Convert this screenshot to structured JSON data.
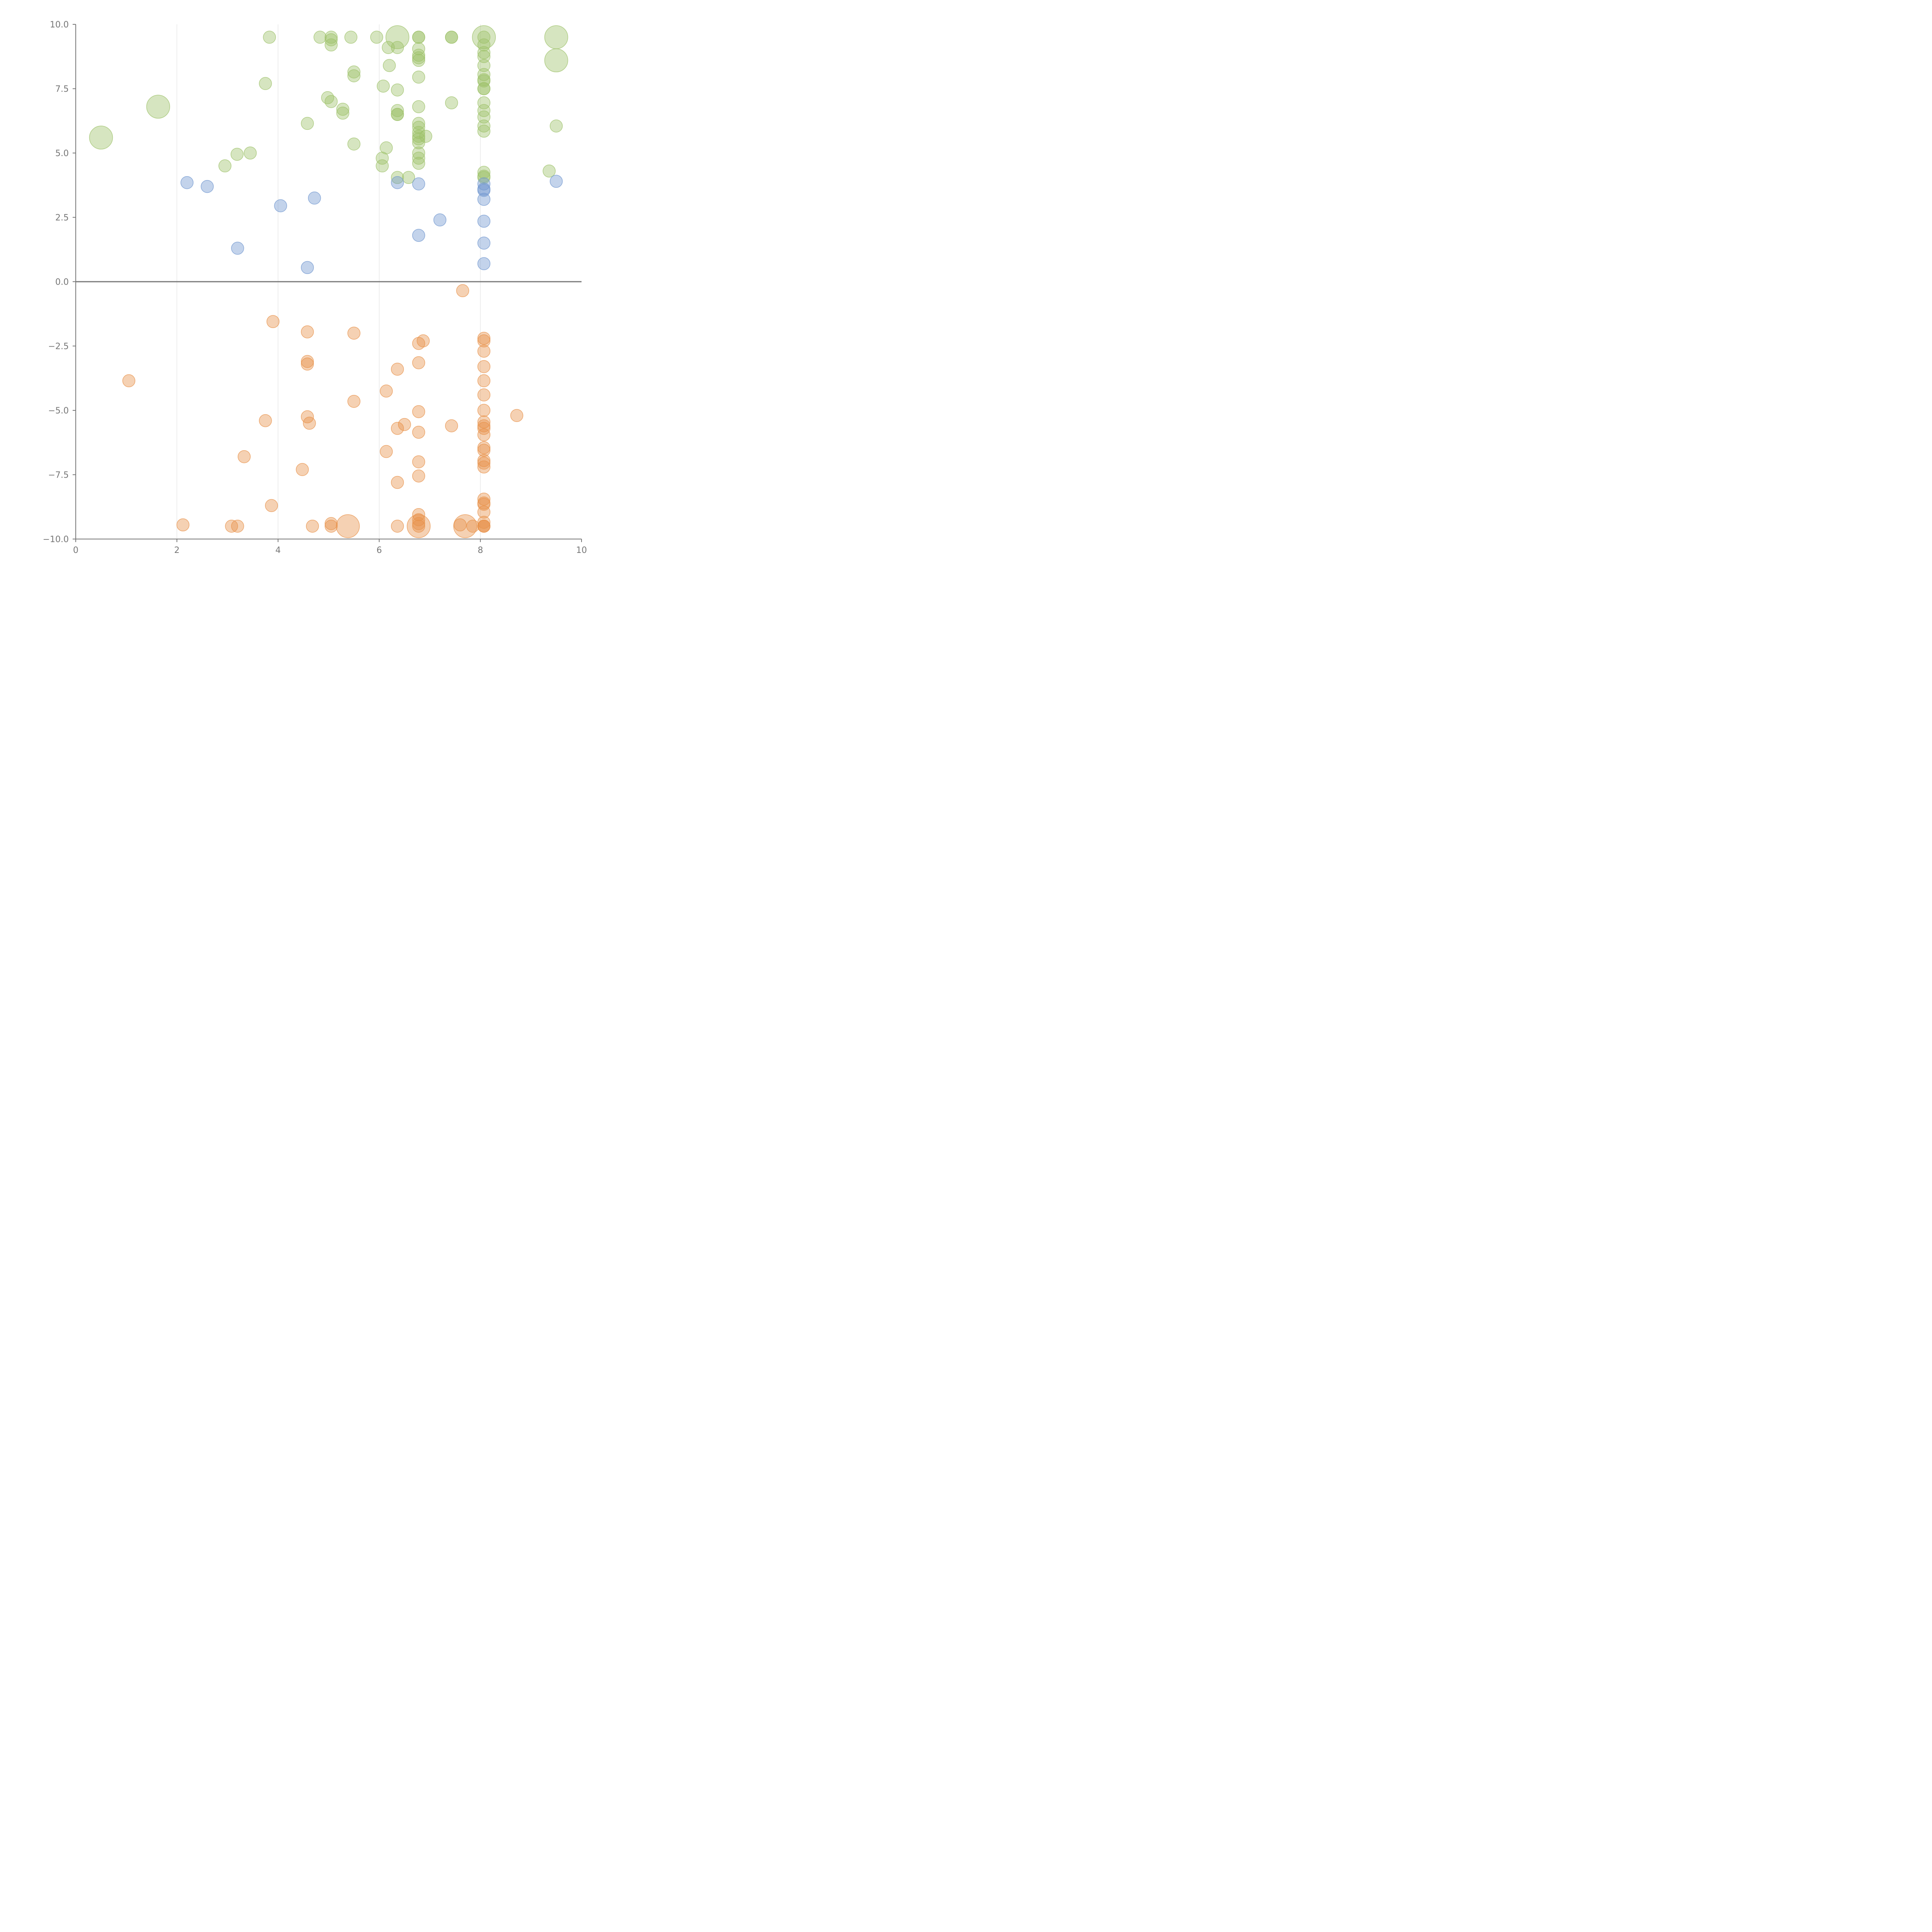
{
  "chart_data": {
    "type": "scatter",
    "title": "",
    "xlabel": "",
    "ylabel": "",
    "xlim": [
      0,
      10
    ],
    "ylim": [
      -10,
      10
    ],
    "x_ticks": [
      "0",
      "2",
      "4",
      "6",
      "8",
      "10"
    ],
    "y_ticks": [
      "−10.0",
      "−7.5",
      "−5.0",
      "−2.5",
      "0.0",
      "2.5",
      "5.0",
      "7.5",
      "10.0"
    ],
    "grid": {
      "vertical": true,
      "horizontal": false
    },
    "legend": "none",
    "bubble_sizes": [
      "small",
      "large"
    ],
    "series": [
      {
        "color": "#9dc26a",
        "points": [
          [
            3.83,
            9.5,
            "small"
          ],
          [
            4.83,
            9.5,
            "small"
          ],
          [
            5.05,
            9.5,
            "small"
          ],
          [
            5.05,
            9.4,
            "small"
          ],
          [
            5.05,
            9.2,
            "small"
          ],
          [
            5.44,
            9.5,
            "small"
          ],
          [
            5.95,
            9.5,
            "small"
          ],
          [
            6.36,
            9.5,
            "large"
          ],
          [
            6.18,
            9.1,
            "small"
          ],
          [
            6.36,
            9.1,
            "small"
          ],
          [
            6.78,
            9.5,
            "small"
          ],
          [
            6.78,
            9.5,
            "small"
          ],
          [
            6.78,
            9.05,
            "small"
          ],
          [
            6.78,
            8.8,
            "small"
          ],
          [
            6.78,
            8.7,
            "small"
          ],
          [
            6.78,
            8.6,
            "small"
          ],
          [
            7.43,
            9.5,
            "small"
          ],
          [
            7.43,
            9.5,
            "small"
          ],
          [
            8.07,
            9.5,
            "large"
          ],
          [
            8.07,
            9.5,
            "small"
          ],
          [
            8.07,
            9.2,
            "small"
          ],
          [
            8.07,
            8.9,
            "small"
          ],
          [
            8.07,
            8.75,
            "small"
          ],
          [
            8.07,
            8.4,
            "small"
          ],
          [
            8.07,
            8.05,
            "small"
          ],
          [
            8.07,
            7.85,
            "small"
          ],
          [
            8.07,
            7.8,
            "small"
          ],
          [
            8.07,
            7.5,
            "small"
          ],
          [
            8.07,
            7.5,
            "small"
          ],
          [
            8.07,
            6.95,
            "small"
          ],
          [
            8.07,
            6.65,
            "small"
          ],
          [
            8.07,
            6.4,
            "small"
          ],
          [
            8.07,
            6.05,
            "small"
          ],
          [
            8.07,
            5.85,
            "small"
          ],
          [
            8.07,
            4.25,
            "small"
          ],
          [
            8.07,
            4.1,
            "small"
          ],
          [
            8.07,
            4.05,
            "small"
          ],
          [
            9.5,
            9.5,
            "large"
          ],
          [
            9.5,
            8.6,
            "large"
          ],
          [
            9.5,
            6.05,
            "small"
          ],
          [
            9.36,
            4.3,
            "small"
          ],
          [
            6.2,
            8.4,
            "small"
          ],
          [
            6.78,
            7.95,
            "small"
          ],
          [
            5.5,
            8.15,
            "small"
          ],
          [
            5.5,
            8.0,
            "small"
          ],
          [
            3.75,
            7.7,
            "small"
          ],
          [
            6.08,
            7.6,
            "small"
          ],
          [
            6.36,
            7.45,
            "small"
          ],
          [
            4.98,
            7.15,
            "small"
          ],
          [
            5.05,
            7.0,
            "small"
          ],
          [
            7.43,
            6.95,
            "small"
          ],
          [
            6.78,
            6.8,
            "small"
          ],
          [
            5.28,
            6.7,
            "small"
          ],
          [
            5.28,
            6.55,
            "small"
          ],
          [
            6.36,
            6.65,
            "small"
          ],
          [
            6.36,
            6.5,
            "small"
          ],
          [
            6.36,
            6.5,
            "small"
          ],
          [
            4.58,
            6.15,
            "small"
          ],
          [
            6.78,
            6.15,
            "small"
          ],
          [
            6.78,
            6.0,
            "small"
          ],
          [
            6.78,
            5.8,
            "small"
          ],
          [
            6.78,
            5.65,
            "small"
          ],
          [
            6.78,
            5.55,
            "small"
          ],
          [
            6.78,
            5.4,
            "small"
          ],
          [
            6.92,
            5.65,
            "small"
          ],
          [
            5.5,
            5.35,
            "small"
          ],
          [
            6.14,
            5.2,
            "small"
          ],
          [
            6.78,
            5.0,
            "small"
          ],
          [
            6.78,
            4.8,
            "small"
          ],
          [
            6.78,
            4.6,
            "small"
          ],
          [
            6.06,
            4.8,
            "small"
          ],
          [
            6.06,
            4.5,
            "small"
          ],
          [
            6.36,
            4.05,
            "small"
          ],
          [
            6.58,
            4.05,
            "small"
          ],
          [
            3.19,
            4.95,
            "small"
          ],
          [
            3.45,
            5.0,
            "small"
          ],
          [
            2.95,
            4.5,
            "small"
          ],
          [
            1.63,
            6.8,
            "large"
          ],
          [
            0.5,
            5.6,
            "large"
          ]
        ]
      },
      {
        "color": "#6f95cf",
        "points": [
          [
            2.2,
            3.85,
            "small"
          ],
          [
            2.6,
            3.7,
            "small"
          ],
          [
            4.05,
            2.95,
            "small"
          ],
          [
            4.72,
            3.25,
            "small"
          ],
          [
            3.2,
            1.3,
            "small"
          ],
          [
            4.58,
            0.55,
            "small"
          ],
          [
            6.36,
            3.85,
            "small"
          ],
          [
            6.78,
            3.8,
            "small"
          ],
          [
            6.78,
            1.8,
            "small"
          ],
          [
            7.2,
            2.4,
            "small"
          ],
          [
            8.07,
            3.8,
            "small"
          ],
          [
            8.07,
            3.6,
            "small"
          ],
          [
            8.07,
            3.55,
            "small"
          ],
          [
            8.07,
            3.2,
            "small"
          ],
          [
            8.07,
            2.35,
            "small"
          ],
          [
            8.07,
            1.5,
            "small"
          ],
          [
            8.07,
            0.7,
            "small"
          ],
          [
            9.5,
            3.9,
            "small"
          ]
        ]
      },
      {
        "color": "#e8924a",
        "points": [
          [
            7.65,
            -0.35,
            "small"
          ],
          [
            3.9,
            -1.55,
            "small"
          ],
          [
            4.58,
            -1.95,
            "small"
          ],
          [
            5.5,
            -2.0,
            "small"
          ],
          [
            6.78,
            -2.4,
            "small"
          ],
          [
            6.87,
            -2.3,
            "small"
          ],
          [
            8.07,
            -2.2,
            "small"
          ],
          [
            8.07,
            -2.3,
            "small"
          ],
          [
            8.07,
            -2.7,
            "small"
          ],
          [
            4.58,
            -3.1,
            "small"
          ],
          [
            4.58,
            -3.2,
            "small"
          ],
          [
            6.78,
            -3.15,
            "small"
          ],
          [
            6.36,
            -3.4,
            "small"
          ],
          [
            8.07,
            -3.3,
            "small"
          ],
          [
            1.05,
            -3.85,
            "small"
          ],
          [
            8.07,
            -3.85,
            "small"
          ],
          [
            6.14,
            -4.25,
            "small"
          ],
          [
            8.07,
            -4.4,
            "small"
          ],
          [
            5.5,
            -4.65,
            "small"
          ],
          [
            8.07,
            -5.0,
            "small"
          ],
          [
            6.78,
            -5.05,
            "small"
          ],
          [
            8.72,
            -5.2,
            "small"
          ],
          [
            4.58,
            -5.25,
            "small"
          ],
          [
            3.75,
            -5.4,
            "small"
          ],
          [
            4.62,
            -5.5,
            "small"
          ],
          [
            6.5,
            -5.55,
            "small"
          ],
          [
            7.43,
            -5.6,
            "small"
          ],
          [
            6.36,
            -5.7,
            "small"
          ],
          [
            6.78,
            -5.85,
            "small"
          ],
          [
            8.07,
            -5.45,
            "small"
          ],
          [
            8.07,
            -5.6,
            "small"
          ],
          [
            8.07,
            -5.7,
            "small"
          ],
          [
            8.07,
            -5.95,
            "small"
          ],
          [
            8.07,
            -6.45,
            "small"
          ],
          [
            8.07,
            -6.55,
            "small"
          ],
          [
            6.14,
            -6.6,
            "small"
          ],
          [
            3.33,
            -6.8,
            "small"
          ],
          [
            6.78,
            -7.0,
            "small"
          ],
          [
            8.07,
            -6.95,
            "small"
          ],
          [
            8.07,
            -7.05,
            "small"
          ],
          [
            8.07,
            -7.2,
            "small"
          ],
          [
            4.48,
            -7.3,
            "small"
          ],
          [
            6.78,
            -7.55,
            "small"
          ],
          [
            6.36,
            -7.8,
            "small"
          ],
          [
            3.87,
            -8.7,
            "small"
          ],
          [
            8.07,
            -8.45,
            "small"
          ],
          [
            8.07,
            -8.6,
            "small"
          ],
          [
            8.07,
            -8.65,
            "small"
          ],
          [
            8.07,
            -8.95,
            "small"
          ],
          [
            6.78,
            -9.05,
            "small"
          ],
          [
            6.78,
            -9.25,
            "small"
          ],
          [
            6.78,
            -9.4,
            "small"
          ],
          [
            6.78,
            -9.5,
            "large"
          ],
          [
            6.78,
            -9.5,
            "small"
          ],
          [
            8.07,
            -9.35,
            "small"
          ],
          [
            8.07,
            -9.5,
            "small"
          ],
          [
            8.07,
            -9.5,
            "small"
          ],
          [
            8.07,
            -9.5,
            "small"
          ],
          [
            7.6,
            -9.45,
            "small"
          ],
          [
            7.7,
            -9.5,
            "large"
          ],
          [
            7.85,
            -9.5,
            "small"
          ],
          [
            2.12,
            -9.45,
            "small"
          ],
          [
            3.08,
            -9.5,
            "small"
          ],
          [
            3.2,
            -9.5,
            "small"
          ],
          [
            4.68,
            -9.5,
            "small"
          ],
          [
            5.05,
            -9.4,
            "small"
          ],
          [
            5.05,
            -9.5,
            "small"
          ],
          [
            5.38,
            -9.5,
            "large"
          ],
          [
            6.36,
            -9.5,
            "small"
          ]
        ]
      }
    ]
  }
}
